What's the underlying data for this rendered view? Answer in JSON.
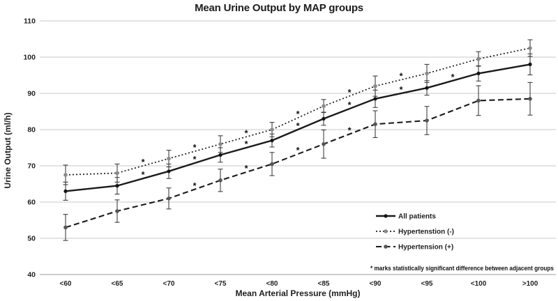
{
  "chart_data": {
    "type": "line",
    "title": "Mean Urine Output by MAP groups",
    "xlabel": "Mean Arterial Pressure (mmHg)",
    "ylabel": "Urine Output (ml/h)",
    "categories": [
      "<60",
      "<65",
      "<70",
      "<75",
      "<80",
      "<85",
      "<90",
      "<95",
      "<100",
      ">100"
    ],
    "y_ticks": [
      40,
      50,
      60,
      70,
      80,
      90,
      100,
      110
    ],
    "ylim": [
      40,
      110
    ],
    "grid": true,
    "error_bars": true,
    "significance_marker": "*",
    "note": "* marks statistically significant difference between adjacent groups",
    "legend_position": "inside-bottom-right",
    "colors": {
      "line": "#1a1a1a",
      "grid": "#c9c9c9",
      "axis": "#9b9b9b",
      "error_bar": "#3f3f3f",
      "dotted_marker": "#8a8a8a",
      "dashed_marker": "#555555",
      "solid_marker": "#141414"
    },
    "series": [
      {
        "name": "All patients",
        "line_style": "solid",
        "values": [
          63,
          64.5,
          68.5,
          73,
          77,
          83,
          88.5,
          91.5,
          95.5,
          98
        ],
        "errors": [
          2.5,
          2.3,
          2.0,
          2.0,
          1.8,
          1.8,
          2.4,
          2.0,
          2.1,
          2.9
        ],
        "significant_vs_next": [
          false,
          true,
          true,
          true,
          true,
          true,
          true,
          true,
          false
        ]
      },
      {
        "name": "Hypertenstion (-)",
        "line_style": "dotted",
        "values": [
          67.5,
          68,
          72,
          76,
          80,
          86.5,
          92,
          95.5,
          99.5,
          102.5
        ],
        "errors": [
          2.7,
          2.5,
          2.3,
          2.3,
          2.0,
          1.8,
          2.8,
          2.5,
          2.0,
          2.3
        ],
        "significant_vs_next": [
          false,
          true,
          true,
          true,
          true,
          true,
          true,
          false,
          false
        ]
      },
      {
        "name": "Hypertension (+)",
        "line_style": "dashed",
        "values": [
          53,
          57.5,
          61,
          66,
          70.5,
          76,
          81.5,
          82.5,
          88,
          88.5
        ],
        "errors": [
          3.6,
          3.1,
          2.9,
          3.1,
          3.2,
          3.9,
          3.7,
          3.9,
          4.1,
          4.5
        ],
        "significant_vs_next": [
          false,
          false,
          true,
          true,
          true,
          true,
          false,
          false,
          false
        ]
      }
    ]
  }
}
